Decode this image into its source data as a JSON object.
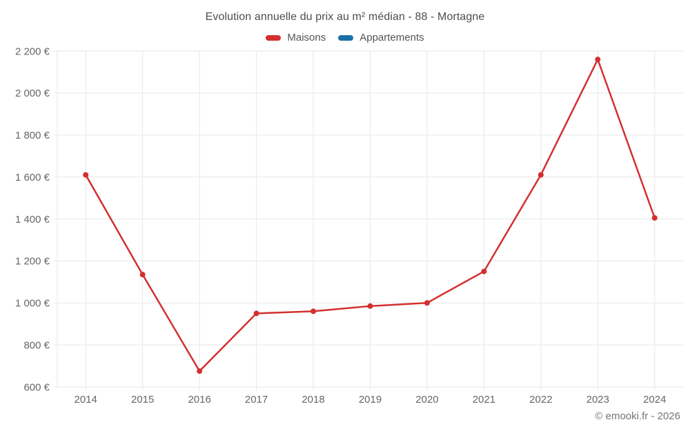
{
  "chart_data": {
    "type": "line",
    "title": "Evolution annuelle du prix au m² médian - 88 - Mortagne",
    "x": [
      "2014",
      "2015",
      "2016",
      "2017",
      "2018",
      "2019",
      "2020",
      "2021",
      "2022",
      "2023",
      "2024"
    ],
    "series": [
      {
        "name": "Maisons",
        "color": "#d32f2f",
        "values": [
          1610,
          1135,
          675,
          950,
          960,
          985,
          1000,
          1150,
          1610,
          2160,
          1405
        ]
      },
      {
        "name": "Appartements",
        "color": "#1a70a6",
        "values": []
      }
    ],
    "ylim": [
      600,
      2200
    ],
    "ytick_step": 200,
    "y_unit": "€",
    "ytick_labels": [
      "600 €",
      "800 €",
      "1 000 €",
      "1 200 €",
      "1 400 €",
      "1 600 €",
      "1 800 €",
      "2 000 €",
      "2 200 €"
    ],
    "grid": true,
    "legend_position": "top",
    "gridline_color": "#e7e7e7",
    "axis_text_color": "#666666"
  },
  "footer": {
    "credit": "© emooki.fr - 2026"
  }
}
